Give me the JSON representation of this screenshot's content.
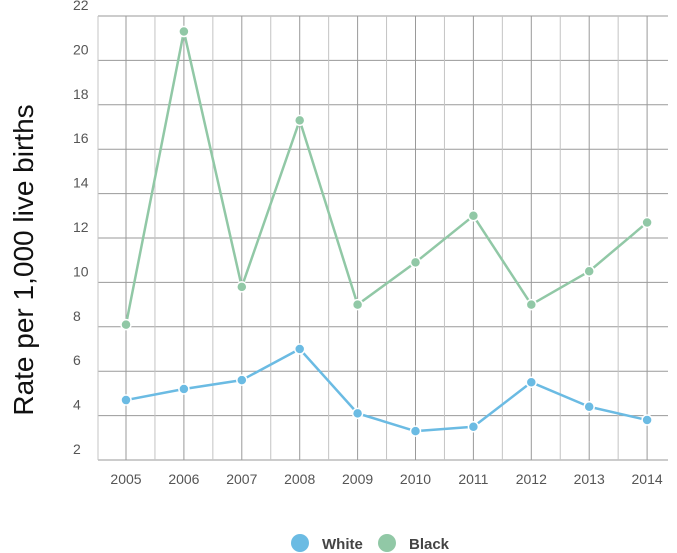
{
  "chart_data": {
    "type": "line",
    "title": "",
    "xlabel": "",
    "ylabel": "Rate per 1,000 live births",
    "x": [
      "2005",
      "2006",
      "2007",
      "2008",
      "2009",
      "2010",
      "2011",
      "2012",
      "2013",
      "2014"
    ],
    "y_ticks": [
      "2",
      "4",
      "6",
      "8",
      "10",
      "12",
      "14",
      "16",
      "18",
      "20",
      "22"
    ],
    "ylim": [
      2,
      22
    ],
    "grid": true,
    "legend_position": "bottom",
    "series": [
      {
        "name": "White",
        "color": "#6bbbe3",
        "values": [
          4.7,
          5.2,
          5.6,
          7.0,
          4.1,
          3.3,
          3.5,
          5.5,
          4.4,
          3.8
        ]
      },
      {
        "name": "Black",
        "color": "#91c8a6",
        "values": [
          8.1,
          21.3,
          9.8,
          17.3,
          9.0,
          10.9,
          13.0,
          9.0,
          10.5,
          12.7
        ]
      }
    ]
  }
}
